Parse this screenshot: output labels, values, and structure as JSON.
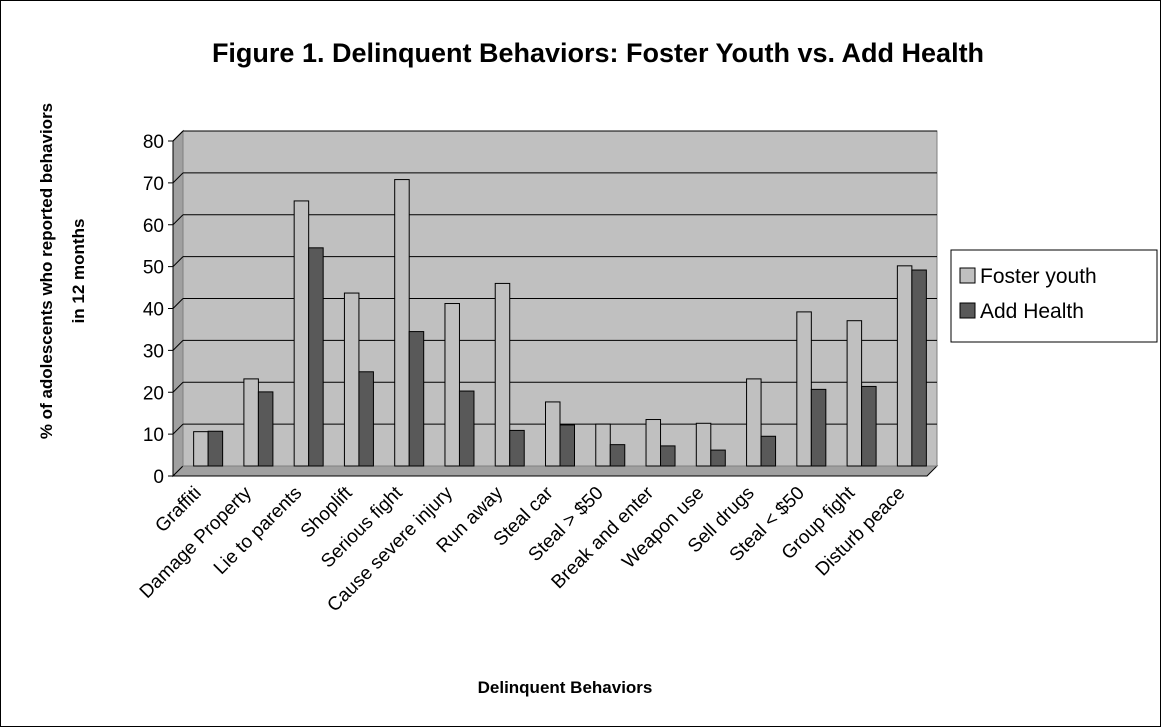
{
  "chart_data": {
    "type": "bar",
    "title": "Figure 1. Delinquent Behaviors: Foster Youth vs. Add Health",
    "xlabel": "Delinquent Behaviors",
    "ylabel_line1": "% of adolescents who reported behaviors",
    "ylabel_line2": "in 12 months",
    "ylim": [
      0,
      80
    ],
    "yticks": [
      "0",
      "10",
      "20",
      "30",
      "40",
      "50",
      "60",
      "70",
      "80"
    ],
    "grid": true,
    "legend_position": "right",
    "categories": [
      "Graffiti",
      "Damage Property",
      "Lie to parents",
      "Shoplift",
      "Serious fight",
      "Cause severe injury",
      "Run away",
      "Steal car",
      "Steal > $50",
      "Break and enter",
      "Weapon use",
      "Sell drugs",
      "Steal < $50",
      "Group fight",
      "Disturb peace"
    ],
    "series": [
      {
        "name": "Foster youth",
        "color": "#c0c0c0",
        "values": [
          8.2,
          20.8,
          63.3,
          41.3,
          68.4,
          38.8,
          43.6,
          15.3,
          10.0,
          11.1,
          10.2,
          20.8,
          36.8,
          34.7,
          47.8
        ]
      },
      {
        "name": "Add Health",
        "color": "#595959",
        "values": [
          8.3,
          17.7,
          52.1,
          22.5,
          32.1,
          17.9,
          8.5,
          9.8,
          5.1,
          4.8,
          3.8,
          7.1,
          18.3,
          19.0,
          46.8
        ]
      }
    ],
    "plot_bg": "#c0c0c0"
  }
}
